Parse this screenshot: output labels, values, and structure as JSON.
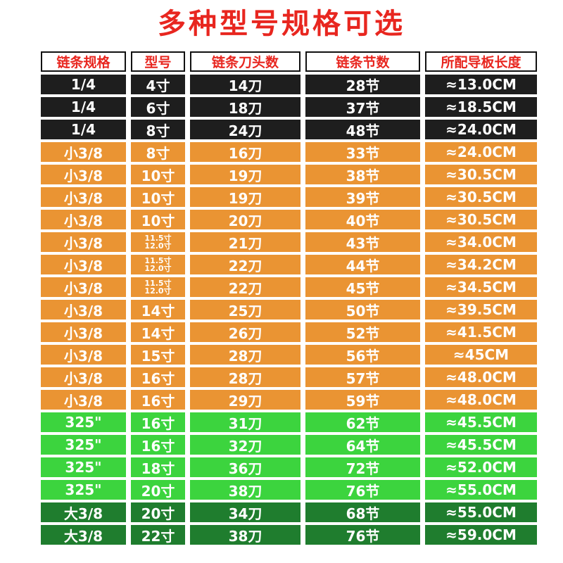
{
  "title": "多种型号规格可选",
  "headers": [
    "链条规格",
    "型号",
    "链条刀头数",
    "链条节数",
    "所配导板长度"
  ],
  "colors": {
    "title_red": "#e8261f",
    "black": "#1e1e1e",
    "orange": "#ea9433",
    "light_green": "#3cd43e",
    "dark_green": "#1f7d2e"
  },
  "rows": [
    {
      "group": "black",
      "spec": "1/4",
      "model": "4寸",
      "teeth": "14刀",
      "links": "28节",
      "bar": "≈13.0CM"
    },
    {
      "group": "black",
      "spec": "1/4",
      "model": "6寸",
      "teeth": "18刀",
      "links": "37节",
      "bar": "≈18.5CM"
    },
    {
      "group": "black",
      "spec": "1/4",
      "model": "8寸",
      "teeth": "24刀",
      "links": "48节",
      "bar": "≈24.0CM"
    },
    {
      "group": "orange",
      "spec": "小3/8",
      "model": "8寸",
      "teeth": "16刀",
      "links": "33节",
      "bar": "≈24.0CM"
    },
    {
      "group": "orange",
      "spec": "小3/8",
      "model": "10寸",
      "teeth": "19刀",
      "links": "38节",
      "bar": "≈30.5CM"
    },
    {
      "group": "orange",
      "spec": "小3/8",
      "model": "10寸",
      "teeth": "19刀",
      "links": "39节",
      "bar": "≈30.5CM"
    },
    {
      "group": "orange",
      "spec": "小3/8",
      "model": "10寸",
      "teeth": "20刀",
      "links": "40节",
      "bar": "≈30.5CM"
    },
    {
      "group": "orange",
      "spec": "小3/8",
      "model": [
        "11.5寸",
        "12.0寸"
      ],
      "teeth": "21刀",
      "links": "43节",
      "bar": "≈34.0CM"
    },
    {
      "group": "orange",
      "spec": "小3/8",
      "model": [
        "11.5寸",
        "12.0寸"
      ],
      "teeth": "22刀",
      "links": "44节",
      "bar": "≈34.2CM"
    },
    {
      "group": "orange",
      "spec": "小3/8",
      "model": [
        "11.5寸",
        "12.0寸"
      ],
      "teeth": "22刀",
      "links": "45节",
      "bar": "≈34.5CM"
    },
    {
      "group": "orange",
      "spec": "小3/8",
      "model": "14寸",
      "teeth": "25刀",
      "links": "50节",
      "bar": "≈39.5CM"
    },
    {
      "group": "orange",
      "spec": "小3/8",
      "model": "14寸",
      "teeth": "26刀",
      "links": "52节",
      "bar": "≈41.5CM"
    },
    {
      "group": "orange",
      "spec": "小3/8",
      "model": "15寸",
      "teeth": "28刀",
      "links": "56节",
      "bar": "≈45CM"
    },
    {
      "group": "orange",
      "spec": "小3/8",
      "model": "16寸",
      "teeth": "28刀",
      "links": "57节",
      "bar": "≈48.0CM"
    },
    {
      "group": "orange",
      "spec": "小3/8",
      "model": "16寸",
      "teeth": "29刀",
      "links": "59节",
      "bar": "≈48.0CM"
    },
    {
      "group": "lgreen",
      "spec": "325\"",
      "model": "16寸",
      "teeth": "31刀",
      "links": "62节",
      "bar": "≈45.5CM"
    },
    {
      "group": "lgreen",
      "spec": "325\"",
      "model": "16寸",
      "teeth": "32刀",
      "links": "64节",
      "bar": "≈45.5CM"
    },
    {
      "group": "lgreen",
      "spec": "325\"",
      "model": "18寸",
      "teeth": "36刀",
      "links": "72节",
      "bar": "≈52.0CM"
    },
    {
      "group": "lgreen",
      "spec": "325\"",
      "model": "20寸",
      "teeth": "38刀",
      "links": "76节",
      "bar": "≈55.0CM"
    },
    {
      "group": "dgreen",
      "spec": "大3/8",
      "model": "20寸",
      "teeth": "34刀",
      "links": "68节",
      "bar": "≈55.0CM"
    },
    {
      "group": "dgreen",
      "spec": "大3/8",
      "model": "22寸",
      "teeth": "38刀",
      "links": "76节",
      "bar": "≈59.0CM"
    }
  ]
}
